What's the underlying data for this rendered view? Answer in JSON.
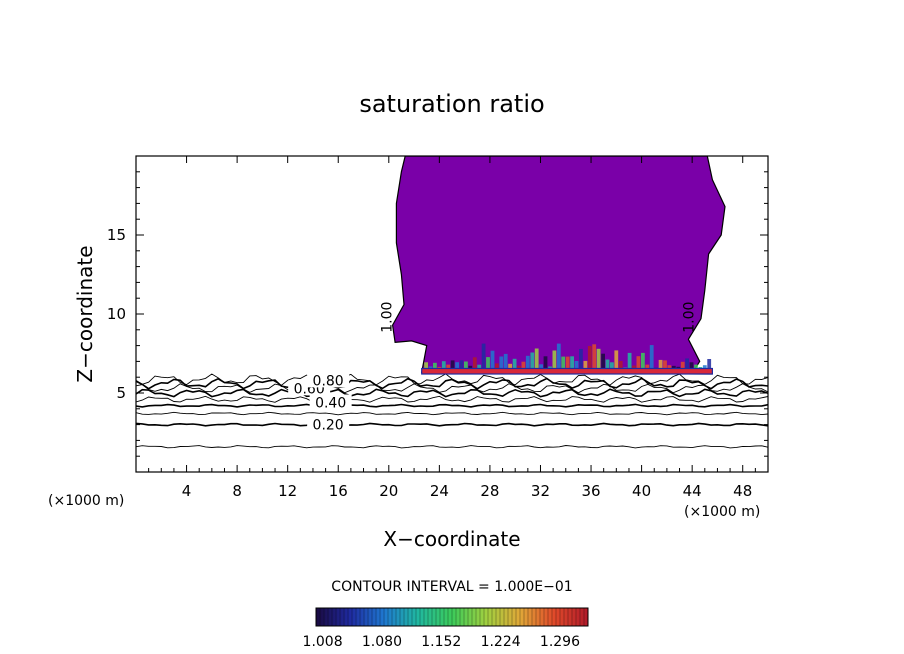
{
  "chart_data": {
    "type": "contour",
    "title": "saturation ratio",
    "xlabel": "X−coordinate",
    "ylabel": "Z−coordinate",
    "x_unit_left": "(×1000 m)",
    "x_unit_right": "(×1000 m)",
    "xlim": [
      0,
      50
    ],
    "ylim": [
      0,
      20
    ],
    "x_ticks": [
      4,
      8,
      12,
      16,
      20,
      24,
      28,
      32,
      36,
      40,
      44,
      48
    ],
    "y_ticks": [
      5,
      10,
      15
    ],
    "contour_interval_text": "CONTOUR INTERVAL = 1.000E−01",
    "contour_levels_z": [
      {
        "level": 0.1,
        "z": 1.6
      },
      {
        "level": 0.2,
        "z": 3.0
      },
      {
        "level": 0.3,
        "z": 3.7
      },
      {
        "level": 0.4,
        "z": 4.2
      },
      {
        "level": 0.5,
        "z": 4.6
      },
      {
        "level": 0.6,
        "z": 5.0
      },
      {
        "level": 0.7,
        "z": 5.3
      },
      {
        "level": 0.8,
        "z": 5.6
      },
      {
        "level": 0.9,
        "z": 5.85
      }
    ],
    "contour_labels": [
      {
        "text": "0.20",
        "x": 15.2,
        "z": 3.0
      },
      {
        "text": "0.40",
        "x": 15.4,
        "z": 4.4
      },
      {
        "text": "0.60",
        "x": 13.7,
        "z": 5.3
      },
      {
        "text": "0.80",
        "x": 15.2,
        "z": 5.8
      },
      {
        "text": "1.00",
        "x": 19.8,
        "z": 9.8
      },
      {
        "text": "1.00",
        "x": 43.7,
        "z": 9.8
      }
    ],
    "supersaturated_region_outline": [
      [
        22.6,
        6.3
      ],
      [
        23.0,
        8.0
      ],
      [
        21.8,
        8.3
      ],
      [
        20.5,
        8.2
      ],
      [
        20.3,
        9.3
      ],
      [
        21.2,
        10.6
      ],
      [
        21.0,
        12.5
      ],
      [
        20.6,
        14.5
      ],
      [
        20.6,
        17.0
      ],
      [
        21.0,
        19.0
      ],
      [
        21.3,
        20.0
      ],
      [
        45.2,
        20.0
      ],
      [
        45.6,
        18.5
      ],
      [
        46.6,
        16.8
      ],
      [
        46.3,
        15.0
      ],
      [
        45.3,
        13.8
      ],
      [
        45.0,
        11.5
      ],
      [
        44.7,
        9.7
      ],
      [
        43.7,
        8.4
      ],
      [
        44.6,
        7.0
      ],
      [
        44.2,
        6.5
      ],
      [
        45.6,
        6.2
      ],
      [
        22.6,
        6.3
      ]
    ],
    "supersaturated_fill_color": "#7a00a8",
    "colorbar": {
      "tick_labels": [
        "1.008",
        "1.080",
        "1.152",
        "1.224",
        "1.296"
      ],
      "min": 1.0,
      "max": 1.33,
      "colors": [
        "#1a0a40",
        "#1f2aa0",
        "#1f78d0",
        "#20b8a0",
        "#3ccb5a",
        "#a0d040",
        "#e0a838",
        "#e04a2a",
        "#b01a2a"
      ]
    },
    "grid": false,
    "legend": "colorbar-bottom"
  }
}
